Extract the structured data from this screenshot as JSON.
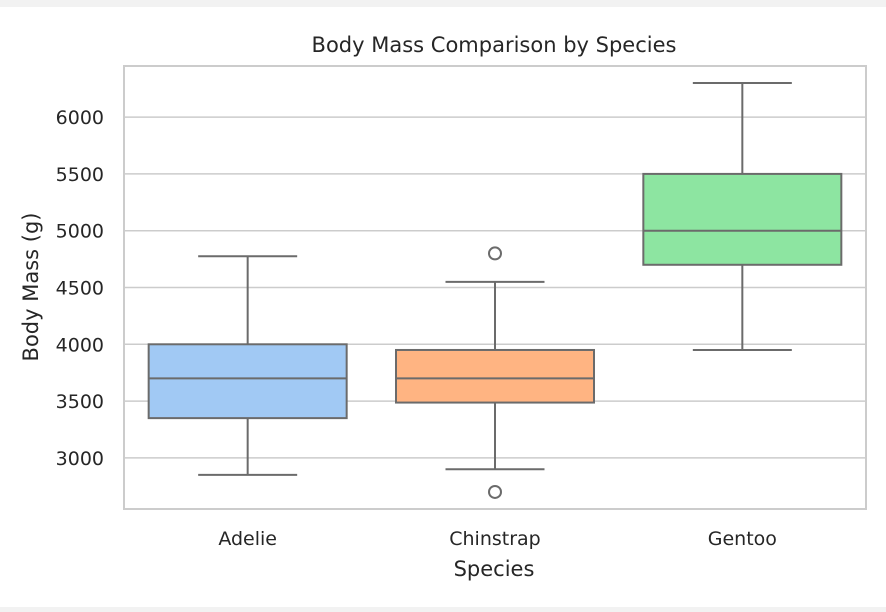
{
  "chart_data": {
    "type": "box",
    "title": "Body Mass Comparison by Species",
    "xlabel": "Species",
    "ylabel": "Body Mass (g)",
    "categories": [
      "Adelie",
      "Chinstrap",
      "Gentoo"
    ],
    "ylim": [
      2550,
      6450
    ],
    "yticks": [
      3000,
      3500,
      4000,
      4500,
      5000,
      5500,
      6000
    ],
    "grid": true,
    "boxes": [
      {
        "category": "Adelie",
        "whisker_low": 2850,
        "q1": 3350,
        "median": 3700,
        "q3": 4000,
        "whisker_high": 4775,
        "outliers": [],
        "color": "#a1c9f4"
      },
      {
        "category": "Chinstrap",
        "whisker_low": 2900,
        "q1": 3487,
        "median": 3700,
        "q3": 3950,
        "whisker_high": 4550,
        "outliers": [
          4800,
          2700
        ],
        "color": "#ffb482"
      },
      {
        "category": "Gentoo",
        "whisker_low": 3950,
        "q1": 4700,
        "median": 5000,
        "q3": 5500,
        "whisker_high": 6300,
        "outliers": [],
        "color": "#8de5a1"
      }
    ],
    "colors": {
      "grid": "#cccccc",
      "frame": "#cccccc",
      "box_edge": "#6b6b6b"
    }
  }
}
